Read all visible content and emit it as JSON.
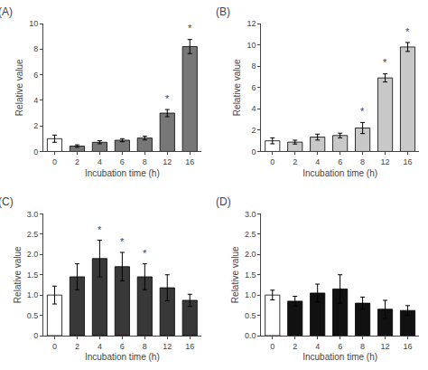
{
  "chart_data": [
    {
      "type": "bar",
      "title": "(A)",
      "categories": [
        "0",
        "2",
        "4",
        "6",
        "8",
        "12",
        "16"
      ],
      "values": [
        1.0,
        0.42,
        0.72,
        0.88,
        1.05,
        3.0,
        8.2
      ],
      "errors": [
        0.28,
        0.1,
        0.12,
        0.12,
        0.15,
        0.28,
        0.55
      ],
      "colors": [
        "white",
        "#777777",
        "#777777",
        "#777777",
        "#777777",
        "#777777",
        "#777777"
      ],
      "annotations": [
        {
          "x": "12",
          "text": "*"
        },
        {
          "x": "16",
          "text": "*"
        }
      ],
      "ylim": [
        0,
        10
      ],
      "yticks": [
        0,
        2,
        4,
        6,
        8,
        10
      ],
      "x_label": "Incubation time (h)",
      "y_label": "Relative value",
      "grid": false
    },
    {
      "type": "bar",
      "title": "(B)",
      "categories": [
        "0",
        "2",
        "4",
        "6",
        "8",
        "12",
        "16"
      ],
      "values": [
        1.0,
        0.88,
        1.35,
        1.5,
        2.2,
        6.9,
        9.8
      ],
      "errors": [
        0.28,
        0.18,
        0.28,
        0.22,
        0.52,
        0.38,
        0.42
      ],
      "colors": [
        "white",
        "#c8c8c8",
        "#c8c8c8",
        "#c8c8c8",
        "#c8c8c8",
        "#c8c8c8",
        "#c8c8c8"
      ],
      "annotations": [
        {
          "x": "8",
          "text": "*"
        },
        {
          "x": "12",
          "text": "*"
        },
        {
          "x": "16",
          "text": "*"
        }
      ],
      "ylim": [
        0,
        12
      ],
      "yticks": [
        0,
        2,
        4,
        6,
        8,
        10,
        12
      ],
      "x_label": "Incubation time (h)",
      "y_label": "Relative value",
      "grid": false
    },
    {
      "type": "bar",
      "title": "(C)",
      "categories": [
        "0",
        "2",
        "4",
        "6",
        "8",
        "12",
        "16"
      ],
      "values": [
        1.0,
        1.45,
        1.9,
        1.7,
        1.45,
        1.18,
        0.87
      ],
      "errors": [
        0.22,
        0.32,
        0.45,
        0.35,
        0.32,
        0.32,
        0.15
      ],
      "colors": [
        "white",
        "#383838",
        "#383838",
        "#383838",
        "#383838",
        "#383838",
        "#383838"
      ],
      "annotations": [
        {
          "x": "4",
          "text": "*"
        },
        {
          "x": "6",
          "text": "*"
        },
        {
          "x": "8",
          "text": "*"
        }
      ],
      "ylim": [
        0,
        3.0
      ],
      "yticks": [
        0,
        0.5,
        {
          "value": 1.0,
          "label": "1.0"
        },
        1.5,
        {
          "value": 2.0,
          "label": "2.0"
        },
        2.5,
        {
          "value": 3.0,
          "label": "3.0"
        }
      ],
      "x_label": "Incubation time (h)",
      "y_label": "Relative value",
      "grid": false
    },
    {
      "type": "bar",
      "title": "(D)",
      "categories": [
        "0",
        "2",
        "4",
        "6",
        "8",
        "12",
        "16"
      ],
      "values": [
        1.0,
        0.85,
        1.05,
        1.15,
        0.8,
        0.65,
        0.62
      ],
      "errors": [
        0.12,
        0.12,
        0.22,
        0.35,
        0.15,
        0.22,
        0.12
      ],
      "colors": [
        "white",
        "#111111",
        "#111111",
        "#111111",
        "#111111",
        "#111111",
        "#111111"
      ],
      "ylim": [
        0,
        3.0
      ],
      "yticks": [
        {
          "value": 0.0,
          "label": "0.0"
        },
        0.5,
        {
          "value": 1.0,
          "label": "1.0"
        },
        1.5,
        {
          "value": 2.0,
          "label": "2.0"
        },
        2.5,
        {
          "value": 3.0,
          "label": "3.0"
        }
      ],
      "x_label": "Incubation time (h)",
      "y_label": "Relative value",
      "grid": false
    }
  ]
}
